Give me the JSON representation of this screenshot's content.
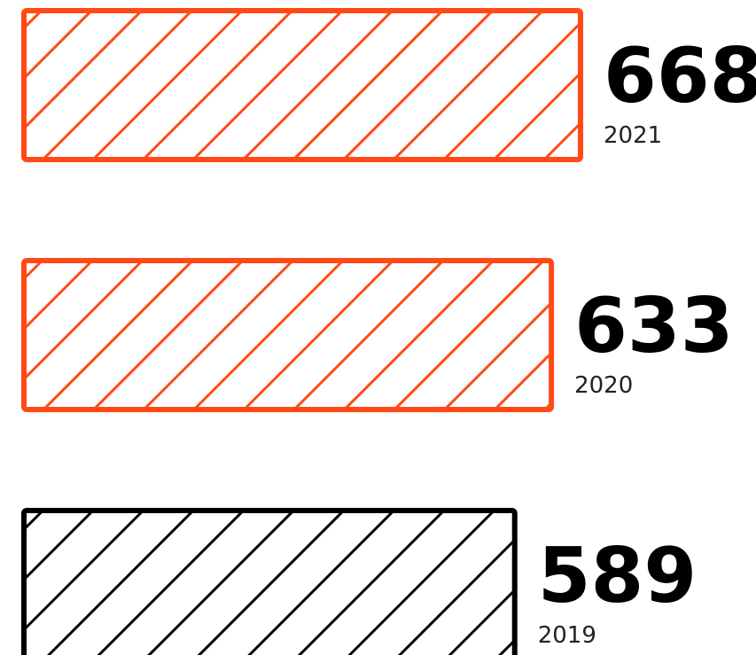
{
  "chart_data": {
    "type": "bar",
    "orientation": "horizontal",
    "categories": [
      "2021",
      "2020",
      "2019"
    ],
    "values": [
      668,
      633,
      589
    ],
    "title": "",
    "xlabel": "",
    "ylabel": "",
    "grid": false,
    "legend": "none",
    "bar_fill": "diagonal-hatch",
    "colors": {
      "highlight": "#FF4A17",
      "default": "#000000",
      "background": "#FFFFFF"
    },
    "bar_colors": [
      "#FF4A17",
      "#FF4A17",
      "#000000"
    ]
  }
}
